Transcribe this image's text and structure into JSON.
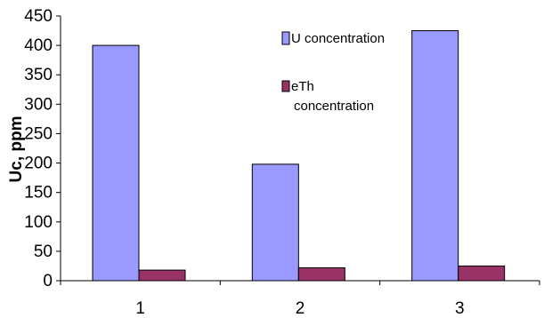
{
  "chart_data": {
    "type": "bar",
    "categories": [
      "1",
      "2",
      "3"
    ],
    "series": [
      {
        "name": "U concentration",
        "values": [
          400,
          198,
          425
        ],
        "color": "#9999ff"
      },
      {
        "name": "eTh concentration",
        "values": [
          18,
          22,
          25
        ],
        "color": "#993366"
      }
    ],
    "ylabel": "Uc, ppm",
    "xlabel": "",
    "ylim": [
      0,
      450
    ],
    "y_ticks": [
      "0",
      "50",
      "100",
      "150",
      "200",
      "250",
      "300",
      "350",
      "400",
      "450"
    ],
    "legend_position": "top-right",
    "legend_labels": {
      "u_line1": "U concentration",
      "eth_line1": "eTh",
      "eth_line2": "concentration"
    },
    "grid": false
  }
}
